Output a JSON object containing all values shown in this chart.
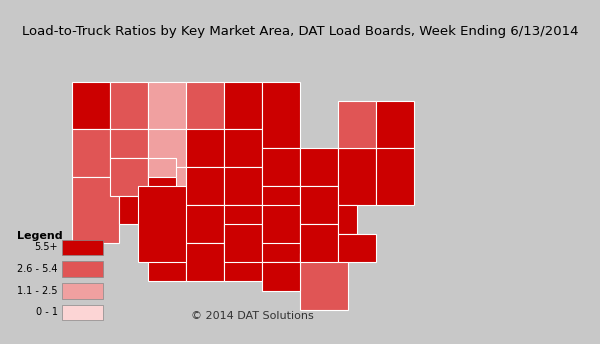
{
  "title": "Load-to-Truck Ratios by Key Market Area, DAT Load Boards, Week Ending 6/13/2014",
  "title_fontsize": 9.5,
  "background_color": "#c8c8c8",
  "map_background": "#c8c8c8",
  "legend_title": "Legend",
  "legend_items": [
    {
      "label": "5.5+",
      "color": "#cc0000"
    },
    {
      "label": "2.6 - 5.4",
      "color": "#e05555"
    },
    {
      "label": "1.1 - 2.5",
      "color": "#f0a0a0"
    },
    {
      "label": "0 - 1",
      "color": "#fcd5d5"
    }
  ],
  "copyright_text": "© 2014 DAT Solutions",
  "state_boundary_color": "#000000",
  "region_boundary_color": "#ffffff",
  "great_lakes_color": "#b0b8b8",
  "state_assignments": {
    "WA": "5.5+",
    "OR": "2.6 - 5.4",
    "CA": "2.6 - 5.4",
    "NV": "2.6 - 5.4",
    "ID": "2.6 - 5.4",
    "MT": "2.6 - 5.4",
    "WY": "1.1 - 2.5",
    "UT": "2.6 - 5.4",
    "CO": "5.5+",
    "AZ": "5.5+",
    "NM": "5.5+",
    "ND": "1.1 - 2.5",
    "SD": "1.1 - 2.5",
    "NE": "1.1 - 2.5",
    "KS": "5.5+",
    "OK": "5.5+",
    "TX": "5.5+",
    "MN": "2.6 - 5.4",
    "IA": "5.5+",
    "MO": "5.5+",
    "AR": "5.5+",
    "LA": "5.5+",
    "WI": "5.5+",
    "IL": "5.5+",
    "MS": "5.5+",
    "MI": "5.5+",
    "IN": "5.5+",
    "OH": "5.5+",
    "KY": "5.5+",
    "TN": "5.5+",
    "AL": "5.5+",
    "GA": "5.5+",
    "FL": "2.6 - 5.4",
    "SC": "5.5+",
    "NC": "5.5+",
    "VA": "5.5+",
    "WV": "5.5+",
    "PA": "5.5+",
    "NY": "2.6 - 5.4",
    "VT": "5.5+",
    "NH": "5.5+",
    "ME": "5.5+",
    "MA": "5.5+",
    "RI": "5.5+",
    "CT": "5.5+",
    "NJ": "5.5+",
    "DE": "5.5+",
    "MD": "5.5+",
    "DC": "5.5+"
  }
}
